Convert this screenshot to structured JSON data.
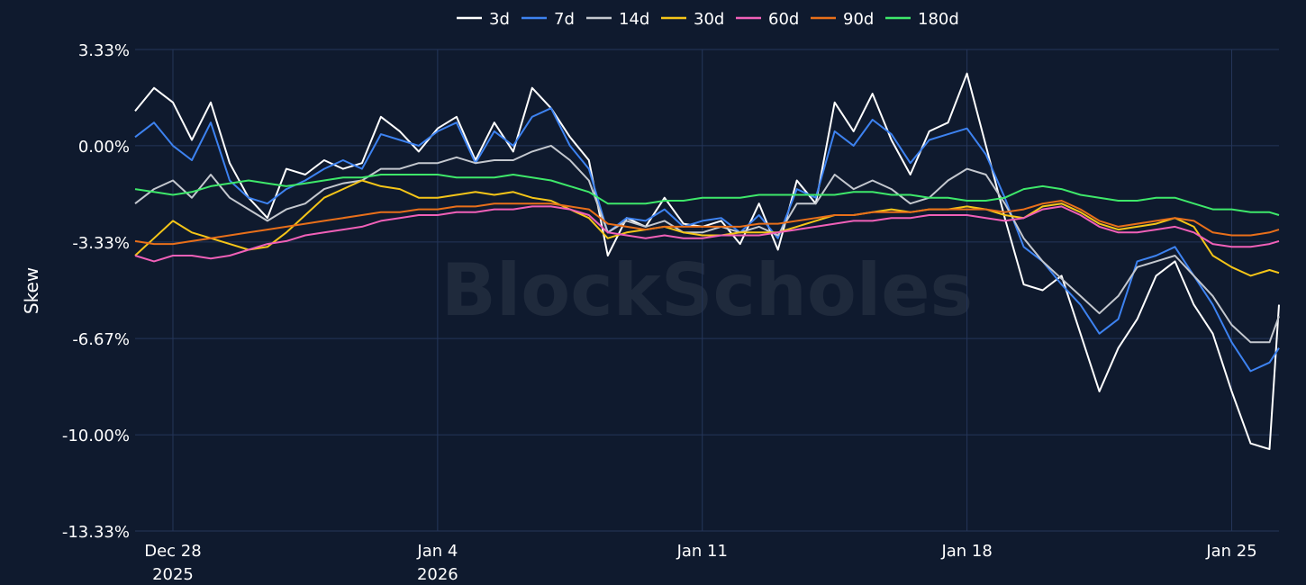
{
  "chart_data": {
    "type": "line",
    "title": "",
    "xlabel": "",
    "ylabel": "Skew",
    "watermark": "BlockScholes",
    "ylim": [
      -13.33,
      3.33
    ],
    "xlim": [
      "2025-12-27T00:00",
      "2026-01-26T06:00"
    ],
    "grid": true,
    "legend_position": "top-center",
    "y_ticks": [
      {
        "value": 3.33,
        "label": "3.33%"
      },
      {
        "value": 0.0,
        "label": "0.00%"
      },
      {
        "value": -3.33,
        "label": "-3.33%"
      },
      {
        "value": -6.67,
        "label": "-6.67%"
      },
      {
        "value": -10.0,
        "label": "-10.00%"
      },
      {
        "value": -13.33,
        "label": "-13.33%"
      }
    ],
    "x_ticks": [
      {
        "date": "2025-12-28",
        "label": "Dec 28",
        "sublabel": "2025"
      },
      {
        "date": "2026-01-04",
        "label": "Jan 4",
        "sublabel": "2026"
      },
      {
        "date": "2026-01-11",
        "label": "Jan 11",
        "sublabel": ""
      },
      {
        "date": "2026-01-18",
        "label": "Jan 18",
        "sublabel": ""
      },
      {
        "date": "2026-01-25",
        "label": "Jan 25",
        "sublabel": ""
      }
    ],
    "colors": {
      "background": "#0f1a2e",
      "grid": "#25365a",
      "text": "#ffffff"
    },
    "x": [
      "2025-12-27T00:00",
      "2025-12-27T12:00",
      "2025-12-28T00:00",
      "2025-12-28T12:00",
      "2025-12-29T00:00",
      "2025-12-29T12:00",
      "2025-12-30T00:00",
      "2025-12-30T12:00",
      "2025-12-31T00:00",
      "2025-12-31T12:00",
      "2026-01-01T00:00",
      "2026-01-01T12:00",
      "2026-01-02T00:00",
      "2026-01-02T12:00",
      "2026-01-03T00:00",
      "2026-01-03T12:00",
      "2026-01-04T00:00",
      "2026-01-04T12:00",
      "2026-01-05T00:00",
      "2026-01-05T12:00",
      "2026-01-06T00:00",
      "2026-01-06T12:00",
      "2026-01-07T00:00",
      "2026-01-07T12:00",
      "2026-01-08T00:00",
      "2026-01-08T12:00",
      "2026-01-09T00:00",
      "2026-01-09T12:00",
      "2026-01-10T00:00",
      "2026-01-10T12:00",
      "2026-01-11T00:00",
      "2026-01-11T12:00",
      "2026-01-12T00:00",
      "2026-01-12T12:00",
      "2026-01-13T00:00",
      "2026-01-13T12:00",
      "2026-01-14T00:00",
      "2026-01-14T12:00",
      "2026-01-15T00:00",
      "2026-01-15T12:00",
      "2026-01-16T00:00",
      "2026-01-16T12:00",
      "2026-01-17T00:00",
      "2026-01-17T12:00",
      "2026-01-18T00:00",
      "2026-01-18T12:00",
      "2026-01-19T00:00",
      "2026-01-19T12:00",
      "2026-01-20T00:00",
      "2026-01-20T12:00",
      "2026-01-21T00:00",
      "2026-01-21T12:00",
      "2026-01-22T00:00",
      "2026-01-22T12:00",
      "2026-01-23T00:00",
      "2026-01-23T12:00",
      "2026-01-24T00:00",
      "2026-01-24T12:00",
      "2026-01-25T00:00",
      "2026-01-25T12:00",
      "2026-01-26T00:00",
      "2026-01-26T06:00"
    ],
    "series": [
      {
        "name": "3d",
        "color": "#ffffff",
        "values": [
          1.2,
          2.0,
          1.5,
          0.2,
          1.5,
          -0.6,
          -1.8,
          -2.5,
          -0.8,
          -1.0,
          -0.5,
          -0.8,
          -0.6,
          1.0,
          0.5,
          -0.2,
          0.6,
          1.0,
          -0.5,
          0.8,
          -0.2,
          2.0,
          1.3,
          0.3,
          -0.5,
          -3.8,
          -2.5,
          -2.8,
          -1.8,
          -2.7,
          -2.8,
          -2.6,
          -3.4,
          -2.0,
          -3.6,
          -1.2,
          -2.0,
          1.5,
          0.5,
          1.8,
          0.2,
          -1.0,
          0.5,
          0.8,
          2.5,
          0.0,
          -2.5,
          -4.8,
          -5.0,
          -4.5,
          -6.5,
          -8.5,
          -7.0,
          -6.0,
          -4.5,
          -4.0,
          -5.5,
          -6.5,
          -8.5,
          -10.3,
          -10.5,
          -5.5
        ]
      },
      {
        "name": "7d",
        "color": "#3d82f0",
        "values": [
          0.3,
          0.8,
          0.0,
          -0.5,
          0.8,
          -1.2,
          -1.8,
          -2.0,
          -1.5,
          -1.2,
          -0.8,
          -0.5,
          -0.8,
          0.4,
          0.2,
          0.0,
          0.5,
          0.8,
          -0.6,
          0.5,
          0.0,
          1.0,
          1.3,
          0.0,
          -0.8,
          -3.0,
          -2.5,
          -2.6,
          -2.2,
          -2.8,
          -2.6,
          -2.5,
          -3.0,
          -2.4,
          -3.2,
          -1.5,
          -1.8,
          0.5,
          0.0,
          0.9,
          0.4,
          -0.6,
          0.2,
          0.4,
          0.6,
          -0.3,
          -1.8,
          -3.5,
          -4.0,
          -4.8,
          -5.5,
          -6.5,
          -6.0,
          -4.0,
          -3.8,
          -3.5,
          -4.5,
          -5.5,
          -6.8,
          -7.8,
          -7.5,
          -7.0
        ]
      },
      {
        "name": "14d",
        "color": "#c4c8cf",
        "values": [
          -2.0,
          -1.5,
          -1.2,
          -1.8,
          -1.0,
          -1.8,
          -2.2,
          -2.6,
          -2.2,
          -2.0,
          -1.5,
          -1.3,
          -1.2,
          -0.8,
          -0.8,
          -0.6,
          -0.6,
          -0.4,
          -0.6,
          -0.5,
          -0.5,
          -0.2,
          0.0,
          -0.5,
          -1.2,
          -3.0,
          -2.6,
          -2.8,
          -2.6,
          -3.0,
          -3.0,
          -2.8,
          -3.0,
          -2.8,
          -3.1,
          -2.0,
          -2.0,
          -1.0,
          -1.5,
          -1.2,
          -1.5,
          -2.0,
          -1.8,
          -1.2,
          -0.8,
          -1.0,
          -2.0,
          -3.2,
          -4.0,
          -4.6,
          -5.2,
          -5.8,
          -5.2,
          -4.2,
          -4.0,
          -3.8,
          -4.5,
          -5.2,
          -6.2,
          -6.8,
          -6.8,
          -5.9
        ]
      },
      {
        "name": "30d",
        "color": "#f5c518",
        "values": [
          -3.8,
          -3.2,
          -2.6,
          -3.0,
          -3.2,
          -3.4,
          -3.6,
          -3.5,
          -3.0,
          -2.4,
          -1.8,
          -1.5,
          -1.2,
          -1.4,
          -1.5,
          -1.8,
          -1.8,
          -1.7,
          -1.6,
          -1.7,
          -1.6,
          -1.8,
          -1.9,
          -2.2,
          -2.5,
          -3.2,
          -3.0,
          -2.9,
          -2.8,
          -3.0,
          -3.1,
          -3.1,
          -3.0,
          -3.0,
          -3.0,
          -2.8,
          -2.6,
          -2.4,
          -2.4,
          -2.3,
          -2.2,
          -2.3,
          -2.2,
          -2.2,
          -2.1,
          -2.2,
          -2.4,
          -2.5,
          -2.1,
          -2.0,
          -2.3,
          -2.7,
          -2.9,
          -2.8,
          -2.7,
          -2.5,
          -2.8,
          -3.8,
          -4.2,
          -4.5,
          -4.3,
          -4.4
        ]
      },
      {
        "name": "60d",
        "color": "#f060b8",
        "values": [
          -3.8,
          -4.0,
          -3.8,
          -3.8,
          -3.9,
          -3.8,
          -3.6,
          -3.4,
          -3.3,
          -3.1,
          -3.0,
          -2.9,
          -2.8,
          -2.6,
          -2.5,
          -2.4,
          -2.4,
          -2.3,
          -2.3,
          -2.2,
          -2.2,
          -2.1,
          -2.1,
          -2.2,
          -2.4,
          -3.0,
          -3.1,
          -3.2,
          -3.1,
          -3.2,
          -3.2,
          -3.1,
          -3.1,
          -3.1,
          -3.0,
          -2.9,
          -2.8,
          -2.7,
          -2.6,
          -2.6,
          -2.5,
          -2.5,
          -2.4,
          -2.4,
          -2.4,
          -2.5,
          -2.6,
          -2.5,
          -2.2,
          -2.1,
          -2.4,
          -2.8,
          -3.0,
          -3.0,
          -2.9,
          -2.8,
          -3.0,
          -3.4,
          -3.5,
          -3.5,
          -3.4,
          -3.3
        ]
      },
      {
        "name": "90d",
        "color": "#e86f1a",
        "values": [
          -3.3,
          -3.4,
          -3.4,
          -3.3,
          -3.2,
          -3.1,
          -3.0,
          -2.9,
          -2.8,
          -2.7,
          -2.6,
          -2.5,
          -2.4,
          -2.3,
          -2.3,
          -2.2,
          -2.2,
          -2.1,
          -2.1,
          -2.0,
          -2.0,
          -2.0,
          -2.0,
          -2.1,
          -2.2,
          -2.7,
          -2.8,
          -2.9,
          -2.8,
          -2.8,
          -2.8,
          -2.8,
          -2.8,
          -2.7,
          -2.7,
          -2.6,
          -2.5,
          -2.4,
          -2.4,
          -2.3,
          -2.3,
          -2.3,
          -2.2,
          -2.2,
          -2.2,
          -2.2,
          -2.3,
          -2.2,
          -2.0,
          -1.9,
          -2.2,
          -2.6,
          -2.8,
          -2.7,
          -2.6,
          -2.5,
          -2.6,
          -3.0,
          -3.1,
          -3.1,
          -3.0,
          -2.9
        ]
      },
      {
        "name": "180d",
        "color": "#3ee86a",
        "values": [
          -1.5,
          -1.6,
          -1.7,
          -1.6,
          -1.4,
          -1.3,
          -1.2,
          -1.3,
          -1.4,
          -1.3,
          -1.2,
          -1.1,
          -1.1,
          -1.0,
          -1.0,
          -1.0,
          -1.0,
          -1.1,
          -1.1,
          -1.1,
          -1.0,
          -1.1,
          -1.2,
          -1.4,
          -1.6,
          -2.0,
          -2.0,
          -2.0,
          -1.9,
          -1.9,
          -1.8,
          -1.8,
          -1.8,
          -1.7,
          -1.7,
          -1.7,
          -1.7,
          -1.7,
          -1.6,
          -1.6,
          -1.7,
          -1.7,
          -1.8,
          -1.8,
          -1.9,
          -1.9,
          -1.8,
          -1.5,
          -1.4,
          -1.5,
          -1.7,
          -1.8,
          -1.9,
          -1.9,
          -1.8,
          -1.8,
          -2.0,
          -2.2,
          -2.2,
          -2.3,
          -2.3,
          -2.4
        ]
      }
    ]
  }
}
